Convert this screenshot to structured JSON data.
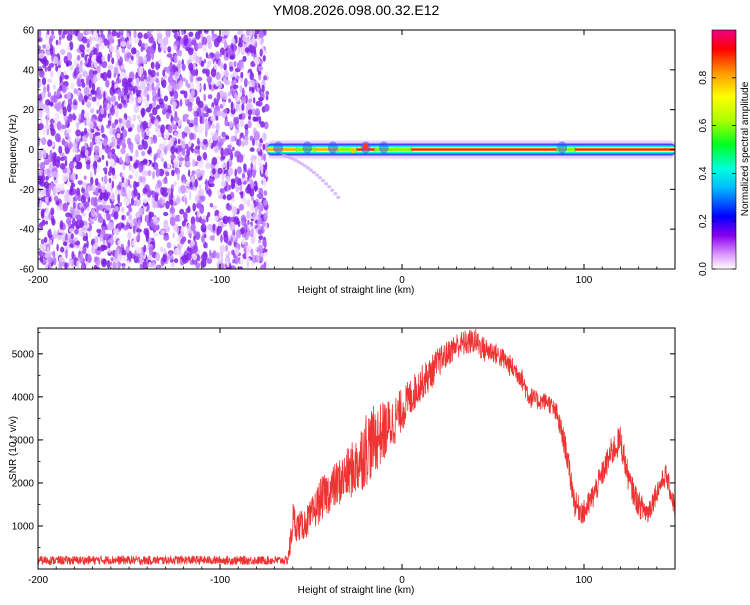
{
  "figure": {
    "title": "YM08.2026.098.00.32.E12"
  },
  "chart_data": [
    {
      "type": "heatmap",
      "xlabel": "Height of straight line (km)",
      "ylabel": "Frequency (Hz)",
      "xlim": [
        -200,
        150
      ],
      "ylim": [
        -60,
        60
      ],
      "xticks": [
        -200,
        -100,
        0,
        100
      ],
      "yticks": [
        -60,
        -40,
        -20,
        0,
        20,
        40,
        60
      ],
      "noise_region_x": [
        -200,
        -74
      ],
      "signal_band": {
        "x_start": -74,
        "x_end": 150,
        "frequency": 0,
        "bright_segments": [
          {
            "x0": -74,
            "x1": -58,
            "amplitude": 0.9
          },
          {
            "x0": -58,
            "x1": -48,
            "amplitude": 0.75
          },
          {
            "x0": -48,
            "x1": -35,
            "amplitude": 0.85
          },
          {
            "x0": -35,
            "x1": -25,
            "amplitude": 0.7
          },
          {
            "x0": -25,
            "x1": -15,
            "amplitude": 0.95
          },
          {
            "x0": -15,
            "x1": 5,
            "amplitude": 0.8
          },
          {
            "x0": 5,
            "x1": 85,
            "amplitude": 0.95
          },
          {
            "x0": 85,
            "x1": 95,
            "amplitude": 0.7
          },
          {
            "x0": 95,
            "x1": 150,
            "amplitude": 0.95
          }
        ]
      },
      "streak": {
        "x0": -65,
        "y0": -3,
        "x1": -35,
        "y1": -24
      },
      "colorbar": {
        "label": "Normalized spectral amplitude",
        "range": [
          0,
          1
        ],
        "ticks": [
          "0.0",
          "0.2",
          "0.4",
          "0.6",
          "0.8"
        ]
      }
    },
    {
      "type": "line",
      "xlabel": "Height of straight line (km)",
      "ylabel": "SNR (10 * v/v)",
      "xlim": [
        -200,
        150
      ],
      "ylim": [
        0,
        5600
      ],
      "xticks": [
        -200,
        -100,
        0,
        100
      ],
      "yticks": [
        1000,
        2000,
        3000,
        4000,
        5000
      ],
      "color": "#ee3333",
      "series": [
        {
          "x": [
            -200,
            -180,
            -160,
            -140,
            -120,
            -100,
            -80,
            -70,
            -63,
            -61,
            -60,
            -58,
            -55,
            -50,
            -45,
            -40,
            -35,
            -30,
            -25,
            -20,
            -15,
            -10,
            -5,
            0,
            5,
            10,
            15,
            20,
            25,
            30,
            35,
            40,
            45,
            50,
            55,
            60,
            65,
            70,
            75,
            80,
            85,
            90,
            95,
            100,
            105,
            110,
            115,
            120,
            125,
            130,
            135,
            140,
            145,
            150
          ],
          "y": [
            200,
            200,
            210,
            200,
            210,
            200,
            200,
            200,
            200,
            650,
            1200,
            1000,
            1000,
            1200,
            1600,
            1800,
            2000,
            2200,
            2400,
            2800,
            3000,
            3200,
            3400,
            3700,
            4000,
            4300,
            4500,
            4800,
            5000,
            5200,
            5250,
            5300,
            5100,
            5050,
            4900,
            4700,
            4500,
            4000,
            3900,
            3900,
            3600,
            2800,
            1500,
            1300,
            1700,
            2200,
            2700,
            3000,
            2000,
            1500,
            1300,
            1800,
            2200,
            1400
          ],
          "noise": [
            100,
            100,
            100,
            100,
            100,
            100,
            100,
            100,
            100,
            400,
            400,
            350,
            350,
            400,
            500,
            500,
            550,
            600,
            700,
            900,
            800,
            700,
            600,
            500,
            450,
            400,
            400,
            350,
            300,
            300,
            300,
            300,
            300,
            250,
            250,
            250,
            250,
            250,
            200,
            200,
            250,
            300,
            300,
            300,
            300,
            300,
            350,
            350,
            300,
            300,
            300,
            250,
            250,
            250
          ]
        }
      ]
    }
  ]
}
